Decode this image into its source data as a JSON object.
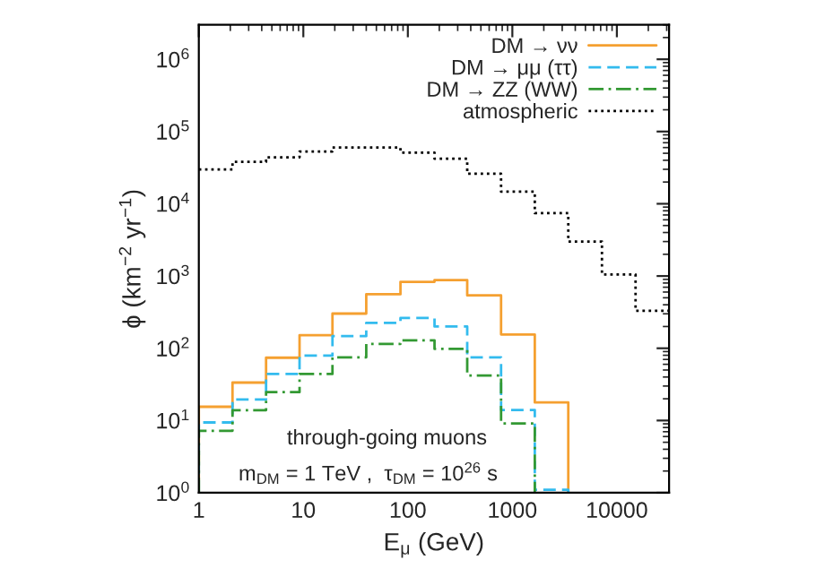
{
  "chart_data": {
    "type": "histogram",
    "xlabel": "E$_{μ}$ (GeV)",
    "ylabel": "ϕ (km$^{−2}$ yr$^{−1}$)",
    "bins": [
      1,
      2.1,
      4.4,
      9.2,
      19,
      40,
      85,
      180,
      370,
      780,
      1640,
      3430,
      7200,
      15100,
      31600
    ],
    "series": [
      {
        "name": "DM → νν",
        "color": "#f5a030",
        "line_style": "solid",
        "bins": [
          1,
          2.1,
          4.4,
          9.2,
          19,
          40,
          85,
          180,
          370,
          780,
          1640,
          3430
        ],
        "values": [
          15.5,
          33.5,
          74,
          152,
          302,
          560,
          830,
          880,
          540,
          155,
          17.8
        ]
      },
      {
        "name": "DM → μμ (ττ)",
        "color": "#33bbee",
        "line_style": "dashed",
        "bins": [
          1,
          2.1,
          4.4,
          9.2,
          19,
          40,
          85,
          180,
          370,
          780,
          1640,
          3430
        ],
        "values": [
          9.4,
          19.6,
          44,
          79,
          147,
          224,
          262,
          200,
          75,
          14,
          1.1
        ]
      },
      {
        "name": "DM → ZZ (WW)",
        "color": "#339933",
        "line_style": "dashdot",
        "bins": [
          1,
          2.1,
          4.4,
          9.2,
          19,
          40,
          85,
          180,
          370,
          780,
          1640
        ],
        "values": [
          7.2,
          13.9,
          24.7,
          44,
          75,
          115,
          129,
          98,
          42,
          9.1
        ]
      },
      {
        "name": "atmospheric",
        "color": "#000000",
        "line_style": "dotted",
        "values": [
          29800,
          38000,
          44000,
          53000,
          60000,
          60000,
          51000,
          42000,
          26000,
          14700,
          7400,
          3000,
          1050,
          330
        ]
      }
    ],
    "log": "xy",
    "xlim": [
      1,
      31600
    ],
    "xticks": [
      1,
      10,
      100,
      1000,
      10000
    ],
    "ylim": [
      1,
      3000000
    ],
    "yticks": [
      {
        "value": 1,
        "label": "10$^{0}$"
      },
      {
        "value": 10,
        "label": "10$^{1}$"
      },
      {
        "value": 100,
        "label": "10$^{2}$"
      },
      {
        "value": 1000,
        "label": "10$^{3}$"
      },
      {
        "value": 10000,
        "label": "10$^{4}$"
      },
      {
        "value": 100000,
        "label": "10$^{5}$"
      },
      {
        "value": 1000000,
        "label": "10$^{6}$"
      }
    ],
    "legend": "top right",
    "annotations": [
      "through-going muons",
      "m$_{DM}$ = 1 TeV ,  τ$_{DM}$ = 10$^{26}$ s"
    ]
  }
}
